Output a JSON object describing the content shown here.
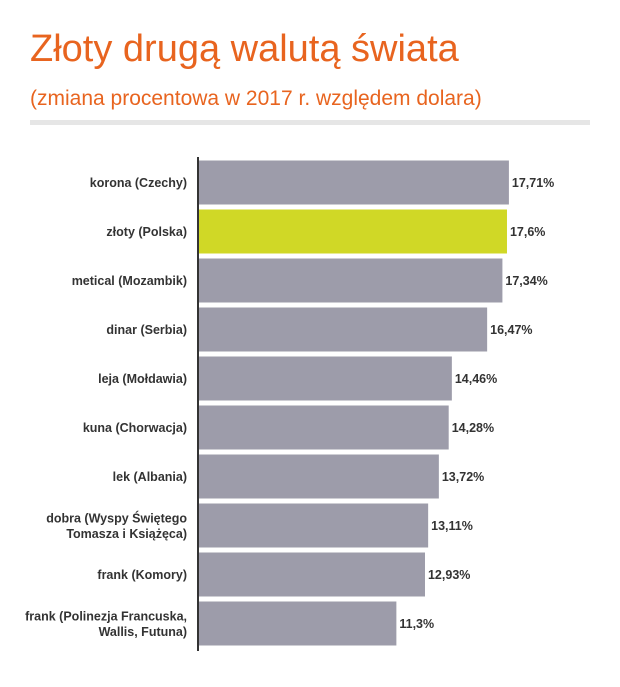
{
  "title": "Złoty drugą walutą świata",
  "subtitle": "(zmiana procentowa w 2017 r. względem dolara)",
  "colors": {
    "accent": "#e8641f",
    "bar": "#9d9caa",
    "highlight": "#d0d826",
    "axis": "#333333"
  },
  "chart_data": {
    "type": "bar",
    "orientation": "horizontal",
    "categories": [
      [
        "korona (Czechy)"
      ],
      [
        "złoty (Polska)"
      ],
      [
        "metical (Mozambik)"
      ],
      [
        "dinar (Serbia)"
      ],
      [
        "leja (Mołdawia)"
      ],
      [
        "kuna (Chorwacja)"
      ],
      [
        "lek (Albania)"
      ],
      [
        "dobra (Wyspy Świętego",
        "Tomasza i Książęca)"
      ],
      [
        "frank (Komory)"
      ],
      [
        "frank (Polinezja Francuska,",
        "Wallis, Futuna)"
      ]
    ],
    "values": [
      17.71,
      17.6,
      17.34,
      16.47,
      14.46,
      14.28,
      13.72,
      13.11,
      12.93,
      11.3
    ],
    "value_labels": [
      "17,71%",
      "17,6%",
      "17,34%",
      "16,47%",
      "14,46%",
      "14,28%",
      "13,72%",
      "13,11%",
      "12,93%",
      "11,3%"
    ],
    "highlight_index": 1,
    "xlim": [
      0,
      18
    ],
    "grid": false,
    "title": "Złoty drugą walutą świata"
  }
}
